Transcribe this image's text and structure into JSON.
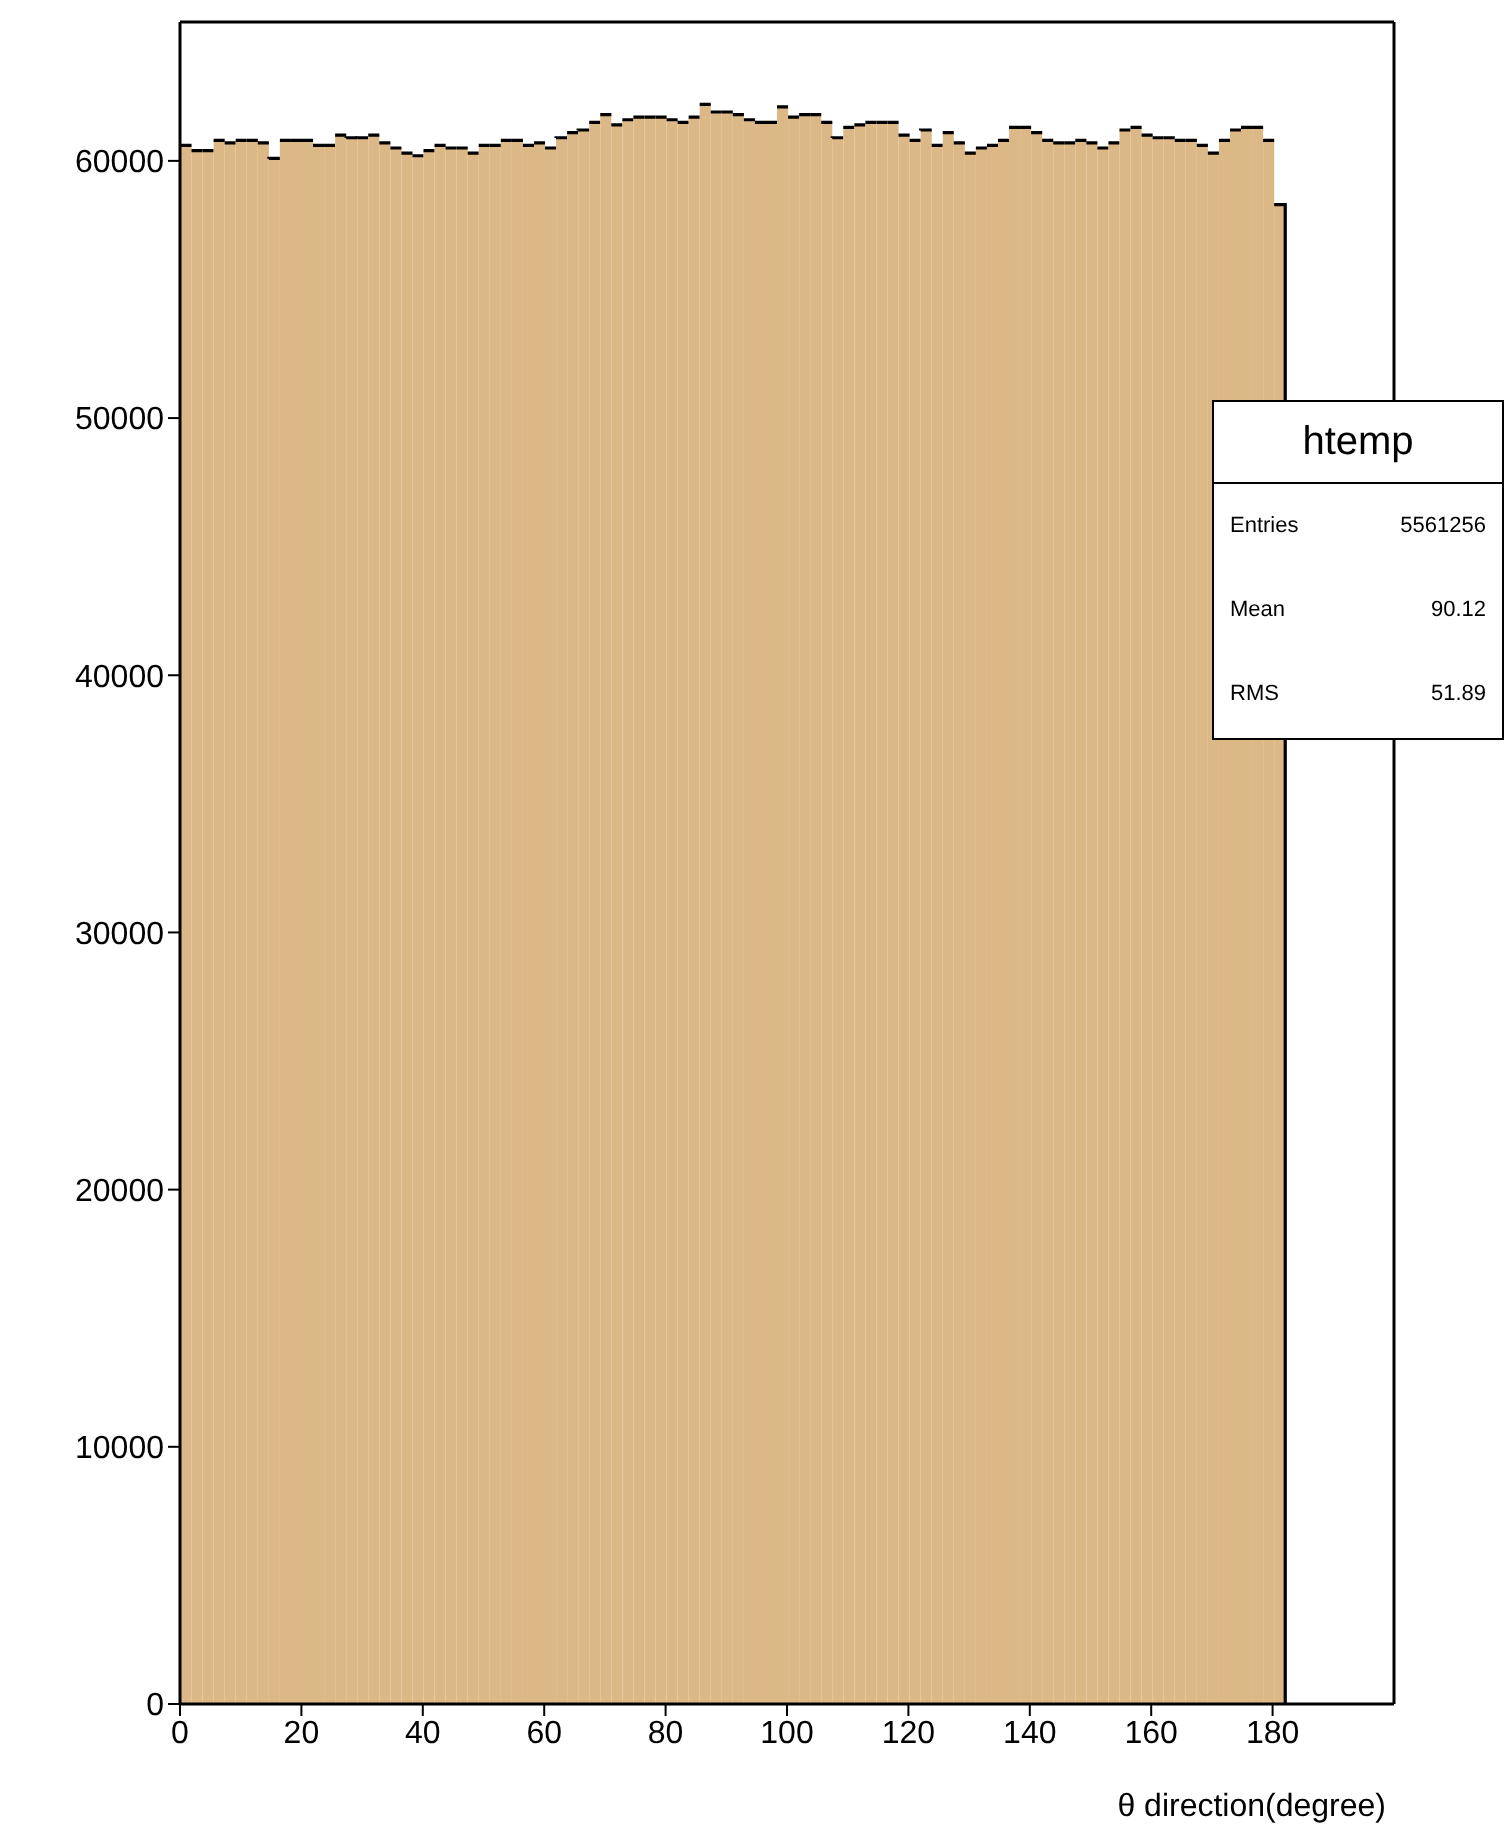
{
  "chart_data": {
    "type": "histogram",
    "xlabel": "θ direction(degree)",
    "legend_title": "htemp",
    "color": "#dcb887",
    "bins": [
      0,
      1.82,
      3.64,
      5.46,
      7.28,
      9.1,
      10.92,
      12.74,
      14.56,
      16.38,
      18.2,
      20.02,
      21.84,
      23.66,
      25.48,
      27.3,
      29.12,
      30.94,
      32.76,
      34.58,
      36.4,
      38.22,
      40.04,
      41.86,
      43.68,
      45.5,
      47.32,
      49.14,
      50.96,
      52.78,
      54.6,
      56.42,
      58.24,
      60.06,
      61.88,
      63.7,
      65.52,
      67.34,
      69.16,
      70.98,
      72.8,
      74.62,
      76.44,
      78.26,
      80.08,
      81.9,
      83.72,
      85.54,
      87.36,
      89.18,
      91,
      92.82,
      94.64,
      96.46,
      98.28,
      100.1,
      101.92,
      103.74,
      105.56,
      107.38,
      109.2,
      111.02,
      112.84,
      114.66,
      116.48,
      118.3,
      120.12,
      121.94,
      123.76,
      125.58,
      127.4,
      129.22,
      131.04,
      132.86,
      134.68,
      136.5,
      138.32,
      140.14,
      141.96,
      143.78,
      145.6,
      147.42,
      149.24,
      151.06,
      152.88,
      154.7,
      156.52,
      158.34,
      160.16,
      161.98,
      163.8,
      165.62,
      167.44,
      169.26,
      171.08,
      172.9,
      174.72,
      176.54,
      178.36,
      180.18,
      182
    ],
    "values": [
      60600,
      60400,
      60400,
      60800,
      60700,
      60800,
      60800,
      60700,
      60100,
      60800,
      60800,
      60800,
      60600,
      60600,
      61000,
      60900,
      60900,
      61000,
      60700,
      60500,
      60300,
      60200,
      60400,
      60600,
      60500,
      60500,
      60300,
      60600,
      60600,
      60800,
      60800,
      60600,
      60700,
      60500,
      60900,
      61100,
      61200,
      61500,
      61800,
      61400,
      61600,
      61700,
      61700,
      61700,
      61600,
      61500,
      61700,
      62200,
      61900,
      61900,
      61800,
      61600,
      61500,
      61500,
      62100,
      61700,
      61800,
      61800,
      61500,
      60900,
      61300,
      61400,
      61500,
      61500,
      61500,
      61000,
      60800,
      61200,
      60600,
      61100,
      60700,
      60300,
      60500,
      60600,
      60800,
      61300,
      61300,
      61100,
      60800,
      60700,
      60700,
      60800,
      60700,
      60500,
      60700,
      61200,
      61300,
      61000,
      60900,
      60900,
      60800,
      60800,
      60600,
      60300,
      60800,
      61200,
      61300,
      61300,
      60800,
      58300
    ],
    "xlim": [
      0,
      200
    ],
    "xticks": [
      0,
      20,
      40,
      60,
      80,
      100,
      120,
      140,
      160,
      180
    ],
    "ylim": [
      0,
      65400
    ],
    "yticks": [
      0,
      10000,
      20000,
      30000,
      40000,
      50000,
      60000
    ],
    "annotations": [
      "Entries",
      "5561256",
      "Mean",
      "90.12",
      "RMS",
      "51.89"
    ]
  }
}
